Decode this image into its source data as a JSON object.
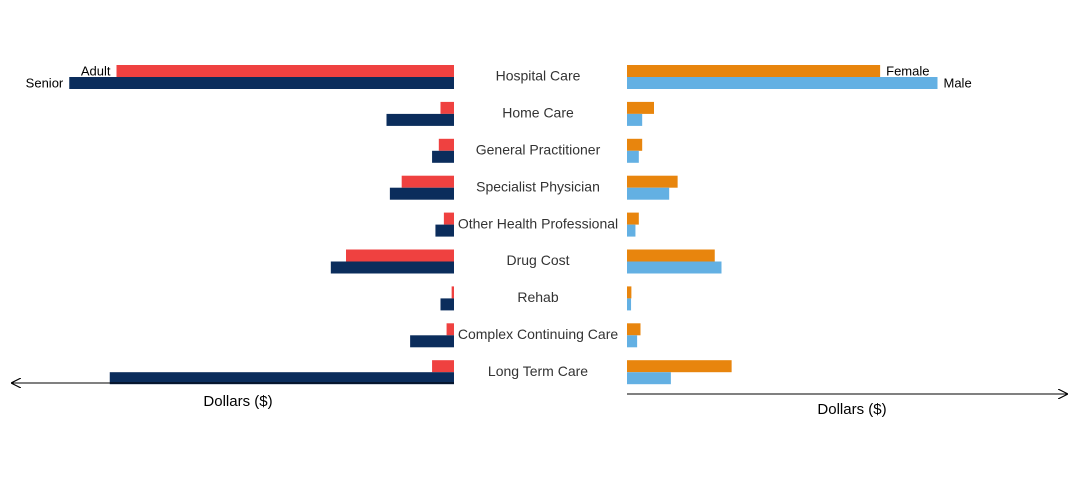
{
  "chart_data": {
    "type": "bar",
    "layout": "butterfly",
    "categories": [
      "Hospital Care",
      "Home Care",
      "General Practitioner",
      "Specialist Physician",
      "Other Health Professional",
      "Drug Cost",
      "Rehab",
      "Complex Continuing Care",
      "Long Term Care"
    ],
    "left": {
      "xlabel": "Dollars ($)",
      "direction": "leftward",
      "series": [
        {
          "name": "Adult",
          "color": "#ef4140",
          "values": [
            100,
            4,
            4.5,
            15.5,
            3,
            32,
            0.7,
            2.2,
            6.5
          ]
        },
        {
          "name": "Senior",
          "color": "#0b2d5c",
          "values": [
            114,
            20,
            6.5,
            19,
            5.5,
            36.5,
            4,
            13,
            102
          ]
        }
      ]
    },
    "right": {
      "xlabel": "Dollars ($)",
      "direction": "rightward",
      "series": [
        {
          "name": "Female",
          "color": "#e8850d",
          "values": [
            75,
            8,
            4.5,
            15,
            3.5,
            26,
            1.3,
            4,
            31
          ]
        },
        {
          "name": "Male",
          "color": "#63b0e3",
          "values": [
            92,
            4.5,
            3.5,
            12.5,
            2.5,
            28,
            1.2,
            3,
            13
          ]
        }
      ]
    }
  }
}
